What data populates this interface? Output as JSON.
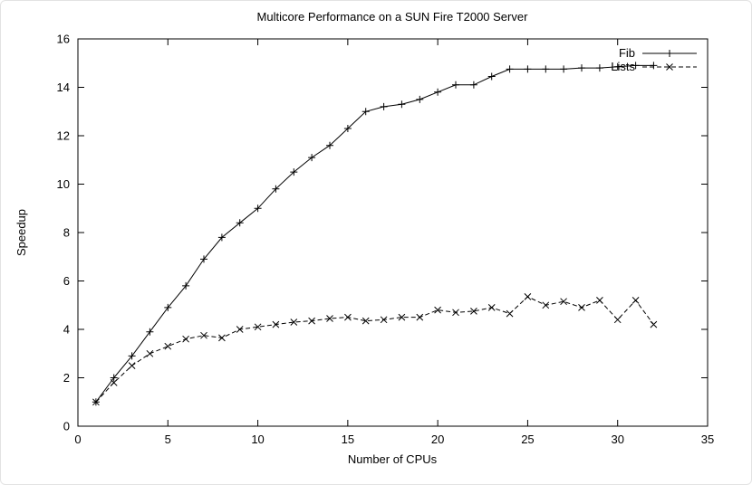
{
  "chart_data": {
    "type": "line",
    "title": "Multicore Performance on a SUN Fire T2000 Server",
    "xlabel": "Number of CPUs",
    "ylabel": "Speedup",
    "xlim": [
      0,
      35
    ],
    "ylim": [
      0,
      16
    ],
    "xticks": [
      0,
      5,
      10,
      15,
      20,
      25,
      30,
      35
    ],
    "yticks": [
      0,
      2,
      4,
      6,
      8,
      10,
      12,
      14,
      16
    ],
    "grid": false,
    "legend_position": "top-right",
    "line_color": "#000000",
    "x": [
      1,
      2,
      3,
      4,
      5,
      6,
      7,
      8,
      9,
      10,
      11,
      12,
      13,
      14,
      15,
      16,
      17,
      18,
      19,
      20,
      21,
      22,
      23,
      24,
      25,
      26,
      27,
      28,
      29,
      30,
      31,
      32
    ],
    "series": [
      {
        "name": "Fib",
        "marker": "plus",
        "line_style": "solid",
        "values": [
          1.0,
          2.0,
          2.9,
          3.9,
          4.9,
          5.8,
          6.9,
          7.8,
          8.4,
          9.0,
          9.8,
          10.5,
          11.1,
          11.6,
          12.3,
          13.0,
          13.2,
          13.3,
          13.5,
          13.8,
          14.1,
          14.1,
          14.45,
          14.75,
          14.75,
          14.75,
          14.75,
          14.8,
          14.8,
          14.85,
          14.9,
          14.9
        ]
      },
      {
        "name": "Lists",
        "marker": "cross",
        "line_style": "dashed",
        "values": [
          1.0,
          1.8,
          2.5,
          3.0,
          3.3,
          3.6,
          3.75,
          3.65,
          4.0,
          4.1,
          4.2,
          4.3,
          4.35,
          4.45,
          4.5,
          4.35,
          4.4,
          4.5,
          4.5,
          4.8,
          4.7,
          4.75,
          4.9,
          4.65,
          5.35,
          5.0,
          5.15,
          4.9,
          5.2,
          4.4,
          5.2,
          4.2
        ]
      }
    ]
  }
}
